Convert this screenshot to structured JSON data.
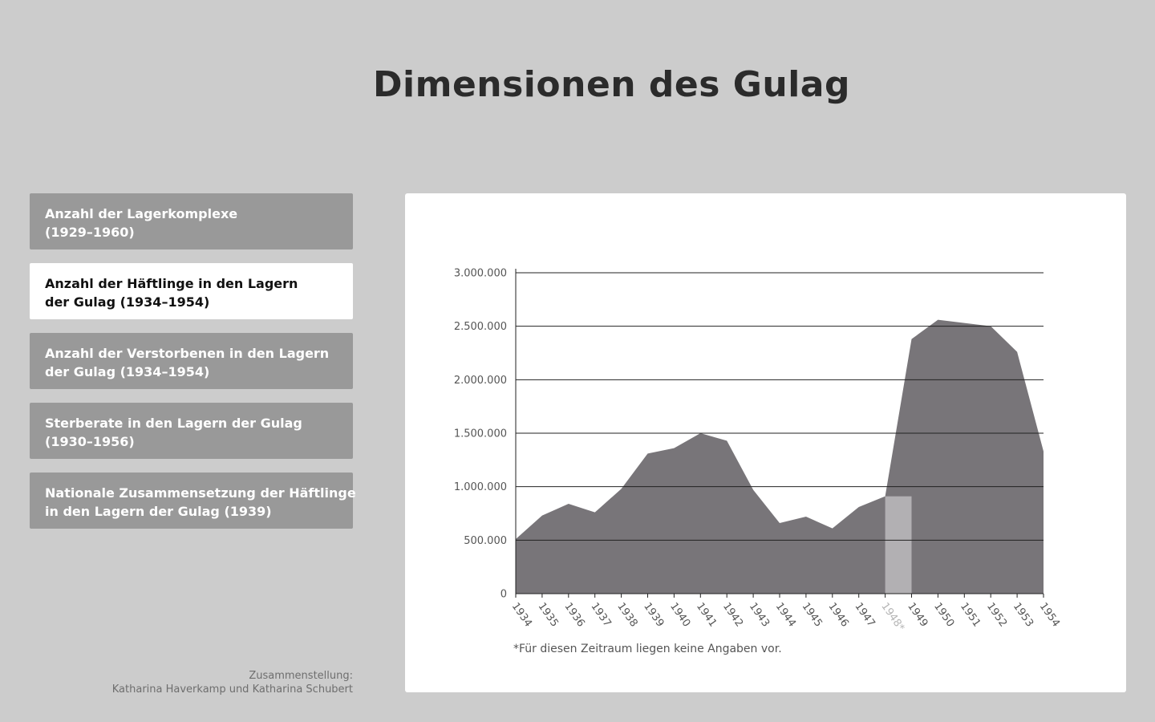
{
  "title": "Dimensionen des Gulag",
  "menu": {
    "items": [
      {
        "line1": "Anzahl der Lagerkomplexe",
        "line2": "(1929–1960)",
        "active": false
      },
      {
        "line1": "Anzahl der Häftlinge in den Lagern",
        "line2": "der Gulag (1934–1954)",
        "active": true
      },
      {
        "line1": "Anzahl der Verstorbenen in den Lagern",
        "line2": "der Gulag (1934–1954)",
        "active": false
      },
      {
        "line1": "Sterberate in den Lagern der Gulag",
        "line2": "(1930–1956)",
        "active": false
      },
      {
        "line1": "Nationale Zusammensetzung der Häftlinge",
        "line2": "in den Lagern der Gulag (1939)",
        "active": false
      }
    ]
  },
  "credit": {
    "line1": "Zusammenstellung:",
    "line2": "Katharina Haverkamp und Katharina Schubert"
  },
  "footnote": "*Für diesen Zeitraum liegen keine Angaben vor.",
  "colors": {
    "background": "#cccccc",
    "area": "#787579",
    "missing_data": "#b2b0b3",
    "gridline": "#222222"
  },
  "chart_data": {
    "type": "area",
    "title": "",
    "xlabel": "",
    "ylabel": "",
    "grid": true,
    "ylim": [
      0,
      3000000
    ],
    "y_ticks": [
      0,
      500000,
      1000000,
      1500000,
      2000000,
      2500000,
      3000000
    ],
    "y_tick_labels": [
      "0",
      "500.000",
      "1.000.000",
      "1.500.000",
      "2.000.000",
      "2.500.000",
      "3.000.000"
    ],
    "x": [
      "1934",
      "1935",
      "1936",
      "1937",
      "1938",
      "1939",
      "1940",
      "1941",
      "1942",
      "1943",
      "1944",
      "1945",
      "1946",
      "1947",
      "1948",
      "1949",
      "1950",
      "1951",
      "1952",
      "1953",
      "1954"
    ],
    "x_tick_labels": [
      "1934",
      "1935",
      "1936",
      "1937",
      "1938",
      "1939",
      "1940",
      "1941",
      "1942",
      "1943",
      "1944",
      "1945",
      "1946",
      "1947",
      "1948*",
      "1949",
      "1950",
      "1951",
      "1952",
      "1953",
      "1954"
    ],
    "values": [
      510000,
      730000,
      840000,
      760000,
      980000,
      1310000,
      1360000,
      1500000,
      1430000,
      970000,
      660000,
      720000,
      610000,
      810000,
      910000,
      2380000,
      2560000,
      2530000,
      2500000,
      2260000,
      1330000
    ],
    "missing_years": [
      "1948"
    ],
    "missing_fill_value": 910000
  }
}
